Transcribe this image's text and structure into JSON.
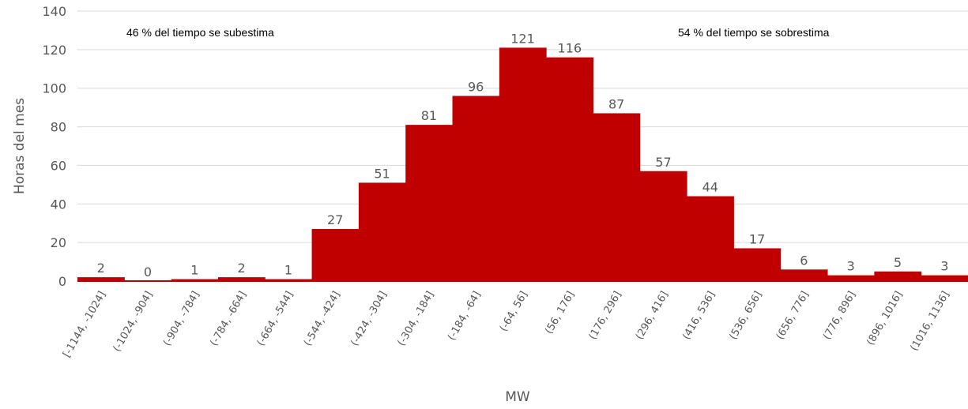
{
  "chart_data": {
    "type": "bar",
    "title": "",
    "xlabel": "MW",
    "ylabel": "Horas del mes",
    "ylim": [
      0,
      140
    ],
    "yticks": [
      0,
      20,
      40,
      60,
      80,
      100,
      120,
      140
    ],
    "grid": true,
    "legend": "none",
    "bar_color": "#C00000",
    "categories": [
      "[-1144, -1024]",
      "(-1024, -904]",
      "(-904, -784]",
      "(-784, -664]",
      "(-664, -544]",
      "(-544, -424]",
      "(-424, -304]",
      "(-304, -184]",
      "(-184, -64]",
      "(-64, 56]",
      "(56, 176]",
      "(176, 296]",
      "(296, 416]",
      "(416, 536]",
      "(536, 656]",
      "(656, 776]",
      "(776, 896]",
      "(896, 1016]",
      "(1016, 1136]"
    ],
    "values": [
      2,
      0,
      1,
      2,
      1,
      27,
      51,
      81,
      96,
      121,
      116,
      87,
      57,
      44,
      17,
      6,
      3,
      5,
      3
    ],
    "annotations": {
      "left": "46 % del tiempo se subestima",
      "right": "54 % del tiempo se sobrestima"
    }
  }
}
